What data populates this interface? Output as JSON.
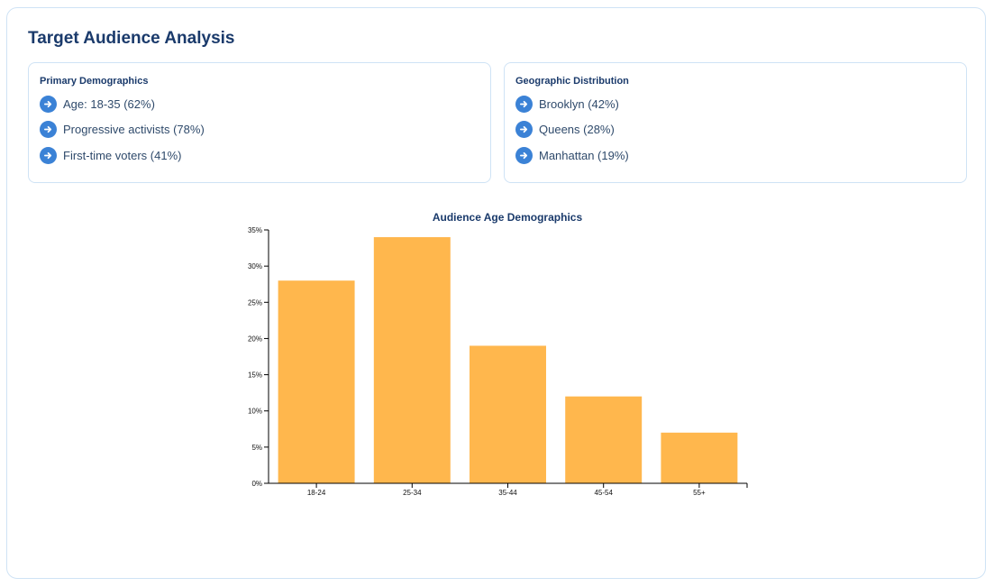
{
  "page": {
    "title": "Target Audience Analysis"
  },
  "cards": {
    "primary": {
      "title": "Primary Demographics",
      "items": [
        "Age: 18-35 (62%)",
        "Progressive activists (78%)",
        "First-time voters (41%)"
      ]
    },
    "geographic": {
      "title": "Geographic Distribution",
      "items": [
        "Brooklyn (42%)",
        "Queens (28%)",
        "Manhattan (19%)"
      ]
    }
  },
  "icons": {
    "list_bullet": "arrow-right-circle-icon"
  },
  "colors": {
    "accent": "#3b82d6",
    "bar": "#ffb74d",
    "title": "#1a3a6b",
    "border": "#cfe3f5"
  },
  "chart_data": {
    "type": "bar",
    "title": "Audience Age Demographics",
    "categories": [
      "18-24",
      "25-34",
      "35-44",
      "45-54",
      "55+"
    ],
    "values": [
      28,
      34,
      19,
      12,
      7
    ],
    "unit": "%",
    "ylim": [
      0,
      35
    ],
    "yticks": [
      0,
      5,
      10,
      15,
      20,
      25,
      30,
      35
    ],
    "xlabel": "",
    "ylabel": "",
    "grid": false,
    "legend": "none"
  }
}
